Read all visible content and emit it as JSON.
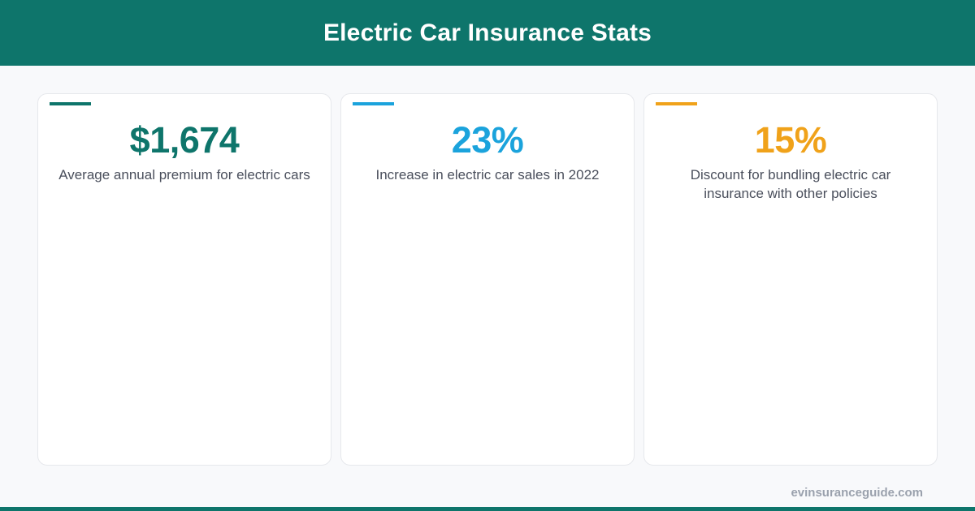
{
  "header": {
    "title": "Electric Car Insurance Stats"
  },
  "stats": [
    {
      "value": "$1,674",
      "label": "Average annual premium for electric cars",
      "accent_color": "#0e756b"
    },
    {
      "value": "23%",
      "label": "Increase in electric car sales in 2022",
      "accent_color": "#1ba3dc"
    },
    {
      "value": "15%",
      "label": "Discount for bundling electric car insurance with other policies",
      "accent_color": "#f0a21a"
    }
  ],
  "footer": {
    "site": "evinsuranceguide.com"
  },
  "colors": {
    "brand": "#0e756b",
    "background": "#f8f9fb",
    "text": "#4a4f5c"
  }
}
